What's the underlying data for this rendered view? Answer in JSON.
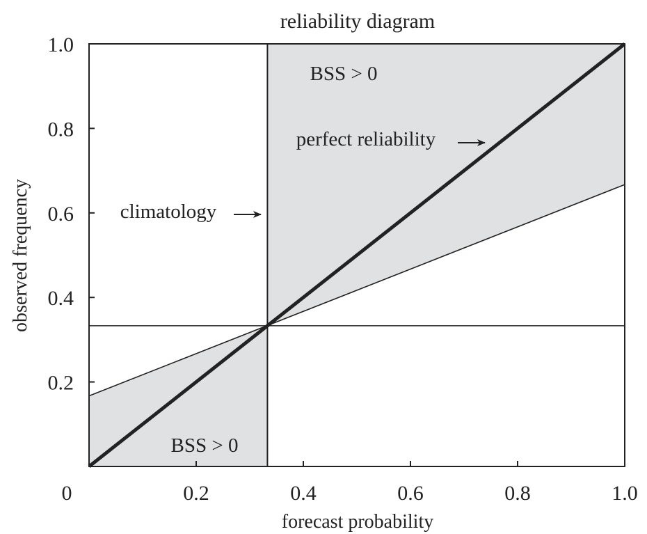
{
  "chart_data": {
    "type": "line",
    "title": "reliability diagram",
    "xlabel": "forecast probability",
    "ylabel": "observed frequency",
    "xlim": [
      0,
      1.0
    ],
    "ylim": [
      0,
      1.0
    ],
    "x_tick_labels": [
      "0",
      "0.2",
      "0.4",
      "0.6",
      "0.8",
      "1.0"
    ],
    "x_tick_values": [
      0,
      0.2,
      0.4,
      0.6,
      0.8,
      1.0
    ],
    "y_tick_labels": [
      "0.2",
      "0.4",
      "0.6",
      "0.8",
      "1.0"
    ],
    "y_tick_values": [
      0.2,
      0.4,
      0.6,
      0.8,
      1.0
    ],
    "climatology": 0.333,
    "series": [
      {
        "x": [
          0,
          1.0
        ],
        "y": [
          0,
          1.0
        ]
      },
      {
        "x": [
          0,
          1.0
        ],
        "y": [
          0.167,
          0.667
        ]
      },
      {
        "x": [
          0,
          1.0
        ],
        "y": [
          0.333,
          0.333
        ]
      },
      {
        "x": [
          0.333,
          0.333
        ],
        "y": [
          0,
          1.0
        ]
      }
    ],
    "shaded_regions": [
      {
        "label": "BSS > 0",
        "polygon": [
          [
            0,
            0
          ],
          [
            0.333,
            0
          ],
          [
            0.333,
            0.333
          ],
          [
            0,
            0.167
          ]
        ]
      },
      {
        "label": "BSS > 0",
        "polygon": [
          [
            0.333,
            0.333
          ],
          [
            1.0,
            0.667
          ],
          [
            1.0,
            1.0
          ],
          [
            0.333,
            1.0
          ]
        ]
      }
    ],
    "annotations": {
      "bss_upper": "BSS > 0",
      "bss_lower": "BSS > 0",
      "perfect_reliability": "perfect reliability",
      "climatology": "climatology"
    },
    "colors": {
      "shade": "#e0e1e3",
      "line": "#222222",
      "frame": "#222222"
    },
    "grid": false
  }
}
